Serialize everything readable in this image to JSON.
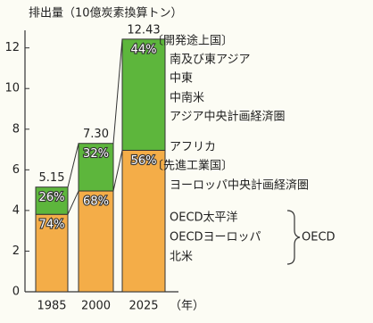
{
  "chart_data": {
    "type": "stacked-bar",
    "title": "排出量（10億炭素換算トン）",
    "categories": [
      "1985",
      "2000",
      "2025"
    ],
    "x_label": "（年）",
    "ylim": [
      0,
      12.6
    ],
    "yticks": [
      0,
      2,
      4,
      6,
      8,
      10,
      12
    ],
    "totals": [
      5.15,
      7.3,
      12.43
    ],
    "total_labels": [
      "5.15",
      "7.30",
      "12.43"
    ],
    "series": [
      {
        "name": "〔先進工業国〕",
        "color": "#f4ad48",
        "values": [
          3.81,
          4.96,
          6.96
        ],
        "shares": [
          74,
          68,
          56
        ],
        "share_labels": [
          "74%",
          "68%",
          "56%"
        ],
        "regions": [
          "ヨーロッパ中央計画経済圏",
          "OECD太平洋",
          "OECDヨーロッパ",
          "北米"
        ],
        "bracket": "OECD"
      },
      {
        "name": "〔開発途上国〕",
        "color": "#5db63c",
        "values": [
          1.34,
          2.34,
          5.47
        ],
        "shares": [
          26,
          32,
          44
        ],
        "share_labels": [
          "26%",
          "32%",
          "44%"
        ],
        "regions": [
          "南及び東アジア",
          "中東",
          "中南米",
          "アジア中央計画経済圏",
          "アフリカ"
        ]
      }
    ]
  }
}
